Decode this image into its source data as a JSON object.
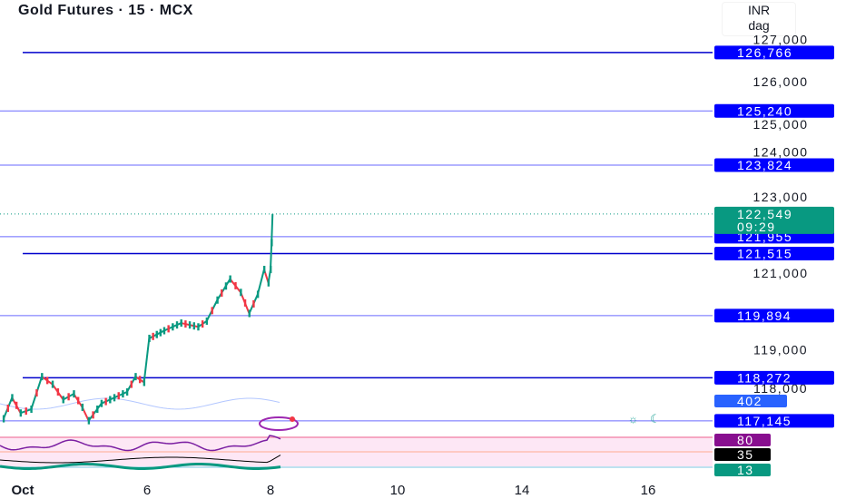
{
  "header": {
    "title": "Gold Futures · 15 · MCX",
    "currency": "INR",
    "unit": "dag"
  },
  "colors": {
    "up": "#089981",
    "down": "#f23645",
    "level_dark": "#0000cc",
    "level_light": "#6a6aff",
    "label_blue": "#0000ff",
    "last_price": "#089981",
    "rsi": "#7b1fa2",
    "rsi_band": "#fde7f5"
  },
  "chart_data": {
    "type": "line",
    "title": "Gold Futures · 15 · MCX",
    "yaxis": {
      "range": [
        116800,
        127300
      ],
      "ticks": [
        127000,
        126000,
        125000,
        124000,
        123000,
        121000,
        119000,
        118000
      ]
    },
    "xaxis": {
      "ticks": [
        "Oct",
        "6",
        "8",
        "10",
        "14",
        "16"
      ]
    },
    "series": [
      {
        "points": [
          [
            "Sep 30 19:00",
            117200
          ],
          [
            "Sep 30 21:00",
            117750
          ],
          [
            "Sep 30 23:00",
            117350
          ],
          [
            "Oct 1 11:00",
            117450
          ],
          [
            "Oct 1 13:30",
            118300
          ],
          [
            "Oct 1 16:00",
            118100
          ],
          [
            "Oct 1 18:30",
            117700
          ],
          [
            "Oct 1 21:00",
            117850
          ],
          [
            "Oct 1 23:00",
            117500
          ],
          [
            "Oct 3 10:00",
            117150
          ],
          [
            "Oct 3 13:00",
            117600
          ],
          [
            "Oct 3 16:00",
            117750
          ],
          [
            "Oct 3 19:00",
            117900
          ],
          [
            "Oct 3 21:00",
            118300
          ],
          [
            "Oct 3 23:00",
            118150
          ],
          [
            "Oct 6 09:30",
            119300
          ],
          [
            "Oct 6 13:00",
            119500
          ],
          [
            "Oct 6 17:00",
            119700
          ],
          [
            "Oct 6 21:00",
            119600
          ],
          [
            "Oct 6 23:00",
            119750
          ],
          [
            "Oct 7 11:00",
            120300
          ],
          [
            "Oct 7 14:00",
            120850
          ],
          [
            "Oct 7 16:30",
            120500
          ],
          [
            "Oct 7 18:30",
            119950
          ],
          [
            "Oct 7 20:30",
            120450
          ],
          [
            "Oct 7 22:00",
            121100
          ],
          [
            "Oct 7 23:00",
            120750
          ],
          [
            "Oct 8 09:00",
            121100
          ],
          [
            "Oct 8 09:15",
            121800
          ],
          [
            "Oct 8 09:29",
            122549
          ]
        ]
      }
    ],
    "levels": [
      {
        "value": 126766,
        "label": "126,766",
        "style": "dark"
      },
      {
        "value": 125240,
        "label": "125,240",
        "style": "light"
      },
      {
        "value": 123824,
        "label": "123,824",
        "style": "light"
      },
      {
        "value": 121955,
        "label": "121,955",
        "style": "light"
      },
      {
        "value": 121515,
        "label": "121,515",
        "style": "dark"
      },
      {
        "value": 119894,
        "label": "119,894",
        "style": "light"
      },
      {
        "value": 118272,
        "label": "118,272",
        "style": "dark"
      },
      {
        "value": 117145,
        "label": "117,145",
        "style": "light"
      }
    ],
    "last_price": {
      "value": 122549,
      "label": "122,549",
      "countdown": "09:29"
    },
    "indicators": {
      "volume_label": "402",
      "rsi_upper": "80",
      "rsi_value": "35",
      "osc_value": "13"
    },
    "grid": false
  }
}
